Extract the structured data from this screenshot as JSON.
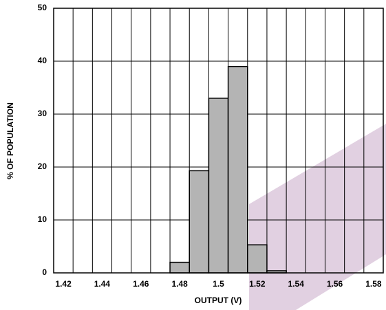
{
  "chart_data": {
    "type": "histogram",
    "xlabel": "OUTPUT (V)",
    "ylabel": "% OF POPULATION",
    "bins": [
      1.415,
      1.425,
      1.435,
      1.445,
      1.455,
      1.465,
      1.475,
      1.485,
      1.495,
      1.505,
      1.515,
      1.525,
      1.535,
      1.545,
      1.555,
      1.565,
      1.575,
      1.585
    ],
    "values": [
      0,
      0,
      0,
      0,
      0,
      0,
      2,
      19.3,
      33,
      39,
      5.3,
      0.4,
      0,
      0,
      0,
      0,
      0
    ],
    "color": "#b4b4b4",
    "xlim": [
      1.415,
      1.585
    ],
    "xticks": [
      1.42,
      1.44,
      1.46,
      1.48,
      1.5,
      1.52,
      1.54,
      1.56,
      1.58
    ],
    "ylim": [
      0,
      50
    ],
    "yticks": [
      0,
      10,
      20,
      30,
      40,
      50
    ],
    "grid": true
  }
}
